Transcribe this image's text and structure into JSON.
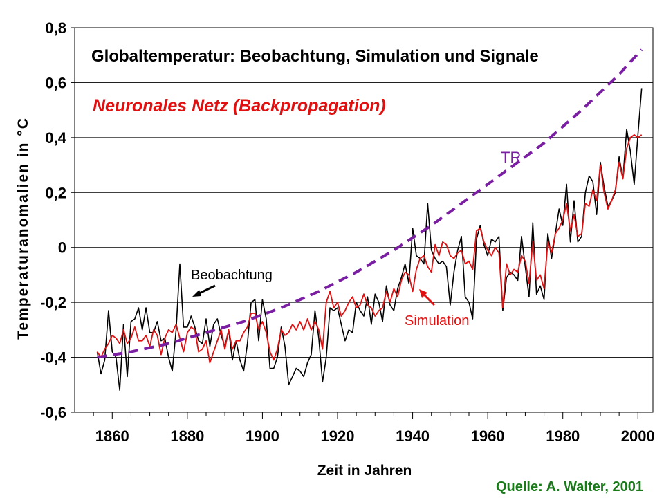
{
  "chart_data": {
    "type": "line",
    "title": "Globaltemperatur: Beobachtung, Simulation und Signale",
    "subtitle": "Neuronales Netz (Backpropagation)",
    "xlabel": "Zeit in Jahren",
    "ylabel": "Temperaturanomalien in °C",
    "source": "Quelle: A. Walter, 2001",
    "xlim": [
      1850,
      2004
    ],
    "ylim": [
      -0.6,
      0.8
    ],
    "x_ticks": [
      1860,
      1880,
      1900,
      1920,
      1940,
      1960,
      1980,
      2000
    ],
    "y_ticks": [
      -0.6,
      -0.4,
      -0.2,
      0,
      0.2,
      0.4,
      0.6,
      0.8
    ],
    "y_tick_labels": [
      "-0,6",
      "-0,4",
      "-0,2",
      "0",
      "0,2",
      "0,4",
      "0,6",
      "0,8"
    ],
    "grid": "horizontal",
    "colors": {
      "Beobachtung": "#000000",
      "Simulation": "#e01010",
      "TR": "#7b1fa2",
      "subtitle": "#e01010",
      "source": "#1a7a1a"
    },
    "annotations": [
      {
        "text": "Beobachtung",
        "color": "#000000"
      },
      {
        "text": "Simulation",
        "color": "#e01010"
      },
      {
        "text": "TR",
        "color": "#7b1fa2"
      }
    ],
    "series": [
      {
        "name": "Beobachtung",
        "style": "solid",
        "x": [
          1856,
          1857,
          1858,
          1859,
          1860,
          1861,
          1862,
          1863,
          1864,
          1865,
          1866,
          1867,
          1868,
          1869,
          1870,
          1871,
          1872,
          1873,
          1874,
          1875,
          1876,
          1877,
          1878,
          1879,
          1880,
          1881,
          1882,
          1883,
          1884,
          1885,
          1886,
          1887,
          1888,
          1889,
          1890,
          1891,
          1892,
          1893,
          1894,
          1895,
          1896,
          1897,
          1898,
          1899,
          1900,
          1901,
          1902,
          1903,
          1904,
          1905,
          1906,
          1907,
          1908,
          1909,
          1910,
          1911,
          1912,
          1913,
          1914,
          1915,
          1916,
          1917,
          1918,
          1919,
          1920,
          1921,
          1922,
          1923,
          1924,
          1925,
          1926,
          1927,
          1928,
          1929,
          1930,
          1931,
          1932,
          1933,
          1934,
          1935,
          1936,
          1937,
          1938,
          1939,
          1940,
          1941,
          1942,
          1943,
          1944,
          1945,
          1946,
          1947,
          1948,
          1949,
          1950,
          1951,
          1952,
          1953,
          1954,
          1955,
          1956,
          1957,
          1958,
          1959,
          1960,
          1961,
          1962,
          1963,
          1964,
          1965,
          1966,
          1967,
          1968,
          1969,
          1970,
          1971,
          1972,
          1973,
          1974,
          1975,
          1976,
          1977,
          1978,
          1979,
          1980,
          1981,
          1982,
          1983,
          1984,
          1985,
          1986,
          1987,
          1988,
          1989,
          1990,
          1991,
          1992,
          1993,
          1994,
          1995,
          1996,
          1997,
          1998,
          1999,
          2000,
          2001
        ],
        "y": [
          -0.38,
          -0.46,
          -0.41,
          -0.23,
          -0.38,
          -0.4,
          -0.52,
          -0.28,
          -0.47,
          -0.27,
          -0.26,
          -0.22,
          -0.3,
          -0.22,
          -0.31,
          -0.31,
          -0.27,
          -0.34,
          -0.33,
          -0.4,
          -0.45,
          -0.3,
          -0.06,
          -0.29,
          -0.29,
          -0.25,
          -0.29,
          -0.34,
          -0.35,
          -0.26,
          -0.36,
          -0.28,
          -0.26,
          -0.32,
          -0.36,
          -0.3,
          -0.41,
          -0.34,
          -0.41,
          -0.45,
          -0.35,
          -0.2,
          -0.19,
          -0.34,
          -0.19,
          -0.26,
          -0.44,
          -0.44,
          -0.4,
          -0.29,
          -0.36,
          -0.5,
          -0.47,
          -0.44,
          -0.45,
          -0.47,
          -0.42,
          -0.39,
          -0.23,
          -0.33,
          -0.49,
          -0.4,
          -0.22,
          -0.23,
          -0.22,
          -0.28,
          -0.34,
          -0.3,
          -0.31,
          -0.2,
          -0.23,
          -0.25,
          -0.18,
          -0.28,
          -0.17,
          -0.2,
          -0.27,
          -0.14,
          -0.21,
          -0.23,
          -0.15,
          -0.11,
          -0.06,
          -0.13,
          0.07,
          -0.03,
          -0.04,
          -0.06,
          0.16,
          -0.01,
          -0.04,
          -0.06,
          -0.05,
          -0.07,
          -0.21,
          -0.09,
          -0.01,
          0.04,
          -0.18,
          -0.2,
          -0.26,
          0.03,
          0.08,
          0.01,
          -0.03,
          0.03,
          0.02,
          0.04,
          -0.23,
          -0.11,
          -0.09,
          -0.1,
          -0.12,
          0.04,
          -0.07,
          -0.18,
          0.09,
          -0.17,
          -0.14,
          -0.19,
          0.05,
          -0.04,
          0.05,
          0.14,
          0.08,
          0.23,
          0.02,
          0.17,
          0.02,
          0.04,
          0.2,
          0.26,
          0.24,
          0.12,
          0.31,
          0.22,
          0.15,
          0.17,
          0.2,
          0.33,
          0.25,
          0.43,
          0.35,
          0.23,
          0.41,
          0.58
        ]
      },
      {
        "name": "Simulation",
        "style": "solid",
        "x": [
          1856,
          1857,
          1858,
          1859,
          1860,
          1861,
          1862,
          1863,
          1864,
          1865,
          1866,
          1867,
          1868,
          1869,
          1870,
          1871,
          1872,
          1873,
          1874,
          1875,
          1876,
          1877,
          1878,
          1879,
          1880,
          1881,
          1882,
          1883,
          1884,
          1885,
          1886,
          1887,
          1888,
          1889,
          1890,
          1891,
          1892,
          1893,
          1894,
          1895,
          1896,
          1897,
          1898,
          1899,
          1900,
          1901,
          1902,
          1903,
          1904,
          1905,
          1906,
          1907,
          1908,
          1909,
          1910,
          1911,
          1912,
          1913,
          1914,
          1915,
          1916,
          1917,
          1918,
          1919,
          1920,
          1921,
          1922,
          1923,
          1924,
          1925,
          1926,
          1927,
          1928,
          1929,
          1930,
          1931,
          1932,
          1933,
          1934,
          1935,
          1936,
          1937,
          1938,
          1939,
          1940,
          1941,
          1942,
          1943,
          1944,
          1945,
          1946,
          1947,
          1948,
          1949,
          1950,
          1951,
          1952,
          1953,
          1954,
          1955,
          1956,
          1957,
          1958,
          1959,
          1960,
          1961,
          1962,
          1963,
          1964,
          1965,
          1966,
          1967,
          1968,
          1969,
          1970,
          1971,
          1972,
          1973,
          1974,
          1975,
          1976,
          1977,
          1978,
          1979,
          1980,
          1981,
          1982,
          1983,
          1984,
          1985,
          1986,
          1987,
          1988,
          1989,
          1990,
          1991,
          1992,
          1993,
          1994,
          1995,
          1996,
          1997,
          1998,
          1999,
          2000,
          2001
        ],
        "y": [
          -0.38,
          -0.4,
          -0.37,
          -0.35,
          -0.32,
          -0.33,
          -0.35,
          -0.3,
          -0.35,
          -0.33,
          -0.29,
          -0.34,
          -0.34,
          -0.32,
          -0.36,
          -0.3,
          -0.32,
          -0.39,
          -0.33,
          -0.3,
          -0.31,
          -0.28,
          -0.33,
          -0.38,
          -0.31,
          -0.29,
          -0.3,
          -0.38,
          -0.37,
          -0.34,
          -0.42,
          -0.38,
          -0.34,
          -0.3,
          -0.37,
          -0.3,
          -0.37,
          -0.34,
          -0.34,
          -0.31,
          -0.29,
          -0.24,
          -0.24,
          -0.3,
          -0.27,
          -0.31,
          -0.38,
          -0.41,
          -0.37,
          -0.3,
          -0.32,
          -0.31,
          -0.28,
          -0.3,
          -0.27,
          -0.3,
          -0.26,
          -0.3,
          -0.27,
          -0.3,
          -0.37,
          -0.2,
          -0.16,
          -0.22,
          -0.2,
          -0.25,
          -0.23,
          -0.2,
          -0.18,
          -0.22,
          -0.21,
          -0.17,
          -0.21,
          -0.22,
          -0.25,
          -0.23,
          -0.22,
          -0.16,
          -0.2,
          -0.15,
          -0.18,
          -0.12,
          -0.09,
          -0.1,
          -0.16,
          -0.08,
          -0.04,
          -0.03,
          -0.07,
          -0.09,
          0.01,
          -0.03,
          0.02,
          0.01,
          -0.03,
          -0.04,
          -0.02,
          -0.01,
          -0.06,
          -0.05,
          -0.08,
          0.06,
          0.07,
          0.02,
          -0.01,
          -0.03,
          0.0,
          -0.02,
          -0.22,
          -0.06,
          -0.1,
          -0.08,
          -0.09,
          -0.03,
          -0.05,
          -0.13,
          0.02,
          -0.12,
          -0.1,
          -0.15,
          0.02,
          -0.02,
          0.05,
          0.07,
          0.1,
          0.16,
          0.06,
          0.12,
          0.04,
          0.05,
          0.16,
          0.15,
          0.21,
          0.17,
          0.3,
          0.2,
          0.14,
          0.17,
          0.21,
          0.31,
          0.25,
          0.36,
          0.4,
          0.41,
          0.4,
          0.41
        ]
      },
      {
        "name": "TR",
        "style": "dashed",
        "x": [
          1856,
          1865,
          1875,
          1885,
          1895,
          1905,
          1915,
          1925,
          1935,
          1945,
          1955,
          1965,
          1975,
          1985,
          1995,
          2001
        ],
        "y": [
          -0.4,
          -0.38,
          -0.35,
          -0.31,
          -0.27,
          -0.22,
          -0.16,
          -0.09,
          -0.01,
          0.08,
          0.18,
          0.28,
          0.38,
          0.5,
          0.63,
          0.72
        ]
      }
    ]
  }
}
